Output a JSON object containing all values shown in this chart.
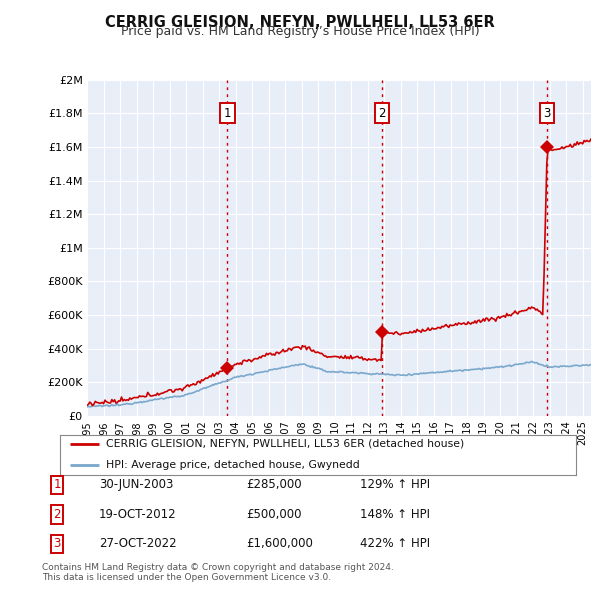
{
  "title": "CERRIG GLEISION, NEFYN, PWLLHELI, LL53 6ER",
  "subtitle": "Price paid vs. HM Land Registry’s House Price Index (HPI)",
  "ylim": [
    0,
    2000000
  ],
  "yticks": [
    0,
    200000,
    400000,
    600000,
    800000,
    1000000,
    1200000,
    1400000,
    1600000,
    1800000,
    2000000
  ],
  "ytick_labels": [
    "£0",
    "£200K",
    "£400K",
    "£600K",
    "£800K",
    "£1M",
    "£1.2M",
    "£1.4M",
    "£1.6M",
    "£1.8M",
    "£2M"
  ],
  "xlim_start": 1995.0,
  "xlim_end": 2025.5,
  "background_color": "#ffffff",
  "plot_bg_color": "#e8eef8",
  "grid_color": "#ffffff",
  "sale_line_color": "#cc0000",
  "hpi_line_color": "#7aa8cc",
  "vline_color": "#cc0000",
  "marker_color": "#cc0000",
  "sale_points": [
    {
      "year": 2003.5,
      "value": 285000,
      "label": "1"
    },
    {
      "year": 2012.83,
      "value": 500000,
      "label": "2"
    },
    {
      "year": 2022.83,
      "value": 1600000,
      "label": "3"
    }
  ],
  "legend_entries": [
    {
      "label": "CERRIG GLEISION, NEFYN, PWLLHELI, LL53 6ER (detached house)",
      "color": "#cc0000",
      "lw": 2
    },
    {
      "label": "HPI: Average price, detached house, Gwynedd",
      "color": "#7aa8cc",
      "lw": 2
    }
  ],
  "table_rows": [
    {
      "num": "1",
      "date": "30-JUN-2003",
      "price": "£285,000",
      "hpi": "129% ↑ HPI"
    },
    {
      "num": "2",
      "date": "19-OCT-2012",
      "price": "£500,000",
      "hpi": "148% ↑ HPI"
    },
    {
      "num": "3",
      "date": "27-OCT-2022",
      "price": "£1,600,000",
      "hpi": "422% ↑ HPI"
    }
  ],
  "footnote1": "Contains HM Land Registry data © Crown copyright and database right 2024.",
  "footnote2": "This data is licensed under the Open Government Licence v3.0."
}
